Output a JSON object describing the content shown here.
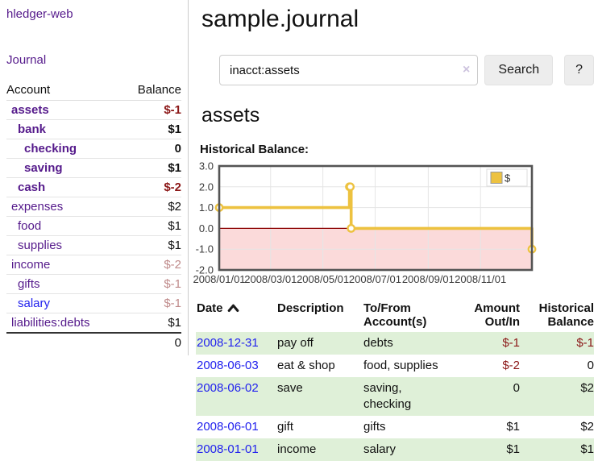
{
  "app": {
    "brand": "hledger-web"
  },
  "sidebar": {
    "journal_label": "Journal",
    "accounts_table": {
      "headers": {
        "account": "Account",
        "balance": "Balance"
      },
      "rows": [
        {
          "account": "assets",
          "balance": "$-1",
          "indent": 1,
          "bold": true,
          "balance_style": "negative-strong",
          "link_style": "visited"
        },
        {
          "account": "bank",
          "balance": "$1",
          "indent": 2,
          "bold": true,
          "balance_style": "normal",
          "link_style": "visited"
        },
        {
          "account": "checking",
          "balance": "0",
          "indent": 3,
          "bold": true,
          "balance_style": "normal",
          "link_style": "visited"
        },
        {
          "account": "saving",
          "balance": "$1",
          "indent": 3,
          "bold": true,
          "balance_style": "normal",
          "link_style": "visited"
        },
        {
          "account": "cash",
          "balance": "$-2",
          "indent": 2,
          "bold": true,
          "balance_style": "negative-strong",
          "link_style": "visited"
        },
        {
          "account": "expenses",
          "balance": "$2",
          "indent": 1,
          "bold": false,
          "balance_style": "normal",
          "link_style": "visited"
        },
        {
          "account": "food",
          "balance": "$1",
          "indent": 2,
          "bold": false,
          "balance_style": "normal",
          "link_style": "visited"
        },
        {
          "account": "supplies",
          "balance": "$1",
          "indent": 2,
          "bold": false,
          "balance_style": "normal",
          "link_style": "visited"
        },
        {
          "account": "income",
          "balance": "$-2",
          "indent": 1,
          "bold": false,
          "balance_style": "negative-dim",
          "link_style": "visited"
        },
        {
          "account": "gifts",
          "balance": "$-1",
          "indent": 2,
          "bold": false,
          "balance_style": "negative-dim",
          "link_style": "visited"
        },
        {
          "account": "salary",
          "balance": "$-1",
          "indent": 2,
          "bold": false,
          "balance_style": "negative-dim",
          "link_style": "unvisited"
        },
        {
          "account": "liabilities:debts",
          "balance": "$1",
          "indent": 1,
          "bold": false,
          "balance_style": "normal",
          "link_style": "visited"
        }
      ],
      "total": "0"
    }
  },
  "main": {
    "title": "sample.journal",
    "search": {
      "value": "inacct:assets",
      "clear_icon": "×",
      "button_label": "Search",
      "help_label": "?"
    },
    "account_heading": "assets",
    "section_label": "Historical Balance:"
  },
  "chart_data": {
    "type": "line",
    "step": true,
    "title": "Historical Balance",
    "x_start": "2008-01-01",
    "x_end": "2008-12-31",
    "ylim": [
      -2,
      3
    ],
    "yticks": [
      {
        "label": "3.0",
        "value": 3
      },
      {
        "label": "2.0",
        "value": 2
      },
      {
        "label": "1.0",
        "value": 1
      },
      {
        "label": "0.0",
        "value": 0
      },
      {
        "label": "-1.0",
        "value": -1
      },
      {
        "label": "-2.0",
        "value": -2
      }
    ],
    "xticks": [
      {
        "label": "2008/01/01",
        "date": "2008-01-01"
      },
      {
        "label": "2008/03/01",
        "date": "2008-03-01"
      },
      {
        "label": "2008/05/01",
        "date": "2008-05-01"
      },
      {
        "label": "2008/07/01",
        "date": "2008-07-01"
      },
      {
        "label": "2008/09/01",
        "date": "2008-09-01"
      },
      {
        "label": "2008/11/01",
        "date": "2008-11-01"
      }
    ],
    "series": [
      {
        "name": "$",
        "color": "#edc240",
        "points": [
          {
            "date": "2008-01-01",
            "value": 1
          },
          {
            "date": "2008-06-01",
            "value": 2
          },
          {
            "date": "2008-06-02",
            "value": 2
          },
          {
            "date": "2008-06-03",
            "value": 0
          },
          {
            "date": "2008-12-31",
            "value": -1
          }
        ]
      }
    ],
    "legend": {
      "label": "$",
      "position": "top-right"
    },
    "grid": true,
    "negative_region_color": "#fbdada",
    "zero_line_color": "#8b0000",
    "grid_color": "#e5e5e5",
    "border_color": "#545454"
  },
  "register_table": {
    "headers": {
      "date": "Date",
      "description": "Description",
      "accounts_line1": "To/From",
      "accounts_line2": "Account(s)",
      "amount_line1": "Amount",
      "amount_line2": "Out/In",
      "balance_line1": "Historical",
      "balance_line2": "Balance"
    },
    "sort": "ascending",
    "rows": [
      {
        "date": "2008-12-31",
        "description": "pay off",
        "accounts": "debts",
        "amount": "$-1",
        "balance": "$-1"
      },
      {
        "date": "2008-06-03",
        "description": "eat & shop",
        "accounts": "food, supplies",
        "amount": "$-2",
        "balance": "0"
      },
      {
        "date": "2008-06-02",
        "description": "save",
        "accounts": "saving, checking",
        "amount": "0",
        "balance": "$2"
      },
      {
        "date": "2008-06-01",
        "description": "gift",
        "accounts": "gifts",
        "amount": "$1",
        "balance": "$2"
      },
      {
        "date": "2008-01-01",
        "description": "income",
        "accounts": "salary",
        "amount": "$1",
        "balance": "$1"
      }
    ]
  },
  "colors": {
    "accent_purple": "#551a8b",
    "link_blue": "#2222ee",
    "negative_strong": "#8b1717",
    "negative_dim": "#bf8a8a",
    "row_green": "#dff0d8",
    "chart_gold": "#edc240"
  }
}
